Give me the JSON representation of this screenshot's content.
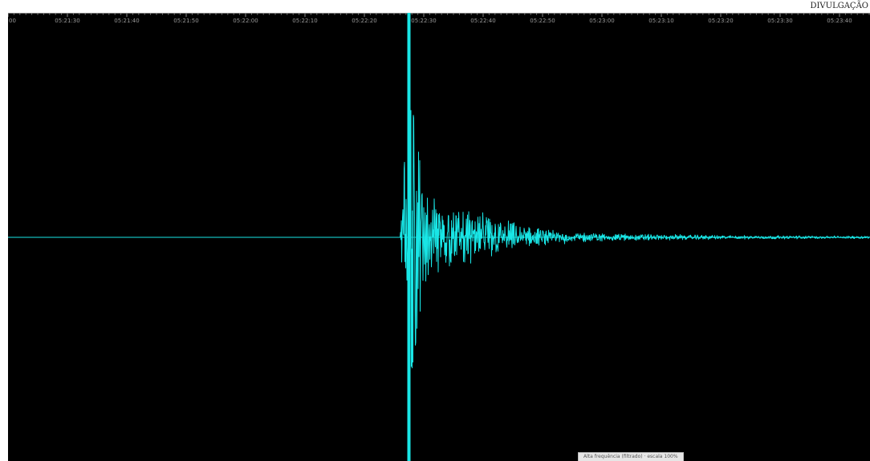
{
  "credit": "DIVULGAÇÃO",
  "status_text": "Alta frequência (filtrado) · escala 100%",
  "colors": {
    "trace": "#19e6e6",
    "background": "#000000",
    "tick": "#8a8a8a",
    "tick_label": "#9a9a9a"
  },
  "chart_data": {
    "type": "line",
    "title": "",
    "xlabel": "",
    "ylabel": "",
    "grid": false,
    "legend": "none",
    "x_ticks": [
      "00",
      "05:21:30",
      "05:21:40",
      "05:21:50",
      "05:22:00",
      "05:22:10",
      "05:22:20",
      "05:22:30",
      "05:22:40",
      "05:22:50",
      "05:23:00",
      "05:23:10",
      "05:23:20",
      "05:23:30",
      "05:23:40"
    ],
    "time_range": [
      "05:21:20",
      "05:23:45"
    ],
    "event_marker_time": "05:22:27.5",
    "waveform_envelope": {
      "description_units": "relative amplitude (fraction of full scale)",
      "points": [
        [
          "05:21:20",
          0.0
        ],
        [
          "05:22:26",
          0.0
        ],
        [
          "05:22:27",
          0.45
        ],
        [
          "05:22:28",
          0.6
        ],
        [
          "05:22:30",
          0.22
        ],
        [
          "05:22:35",
          0.17
        ],
        [
          "05:22:40",
          0.12
        ],
        [
          "05:22:45",
          0.08
        ],
        [
          "05:22:50",
          0.04
        ],
        [
          "05:23:00",
          0.02
        ],
        [
          "05:23:20",
          0.01
        ],
        [
          "05:23:45",
          0.006
        ]
      ]
    }
  }
}
